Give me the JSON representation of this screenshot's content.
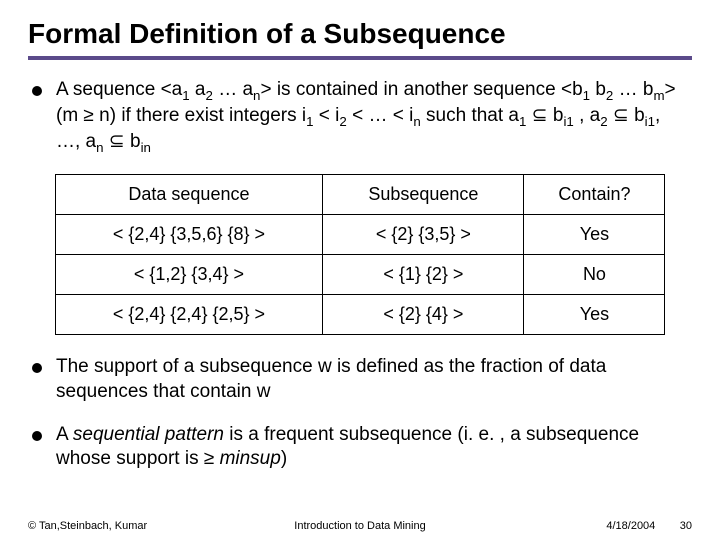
{
  "title": "Formal Definition of a Subsequence",
  "bullets": {
    "b1_pre": "A sequence <a",
    "b1_mid1": " a",
    "b1_mid2": " … a",
    "b1_post1": "> is contained in another sequence <b",
    "b1_mid3": " b",
    "b1_mid4": " … b",
    "b1_post2": "> (m ≥ n) if there exist integers i",
    "b1_mid5": " < i",
    "b1_mid6": " < … < i",
    "b1_post3": " such that a",
    "b1_mid7": " ⊆ b",
    "b1_mid8": " , a",
    "b1_mid9": " ⊆ b",
    "b1_mid10": ", …, a",
    "b1_mid11": " ⊆ b",
    "b2": "The support of a subsequence w is defined as the fraction of data sequences that contain w",
    "b3_pre": "A ",
    "b3_em": "sequential pattern",
    "b3_mid": " is a frequent subsequence (i. e. , a subsequence whose support is ≥ ",
    "b3_em2": "minsup",
    "b3_post": ")"
  },
  "table": {
    "headers": [
      "Data sequence",
      "Subsequence",
      "Contain?"
    ],
    "rows": [
      [
        "< {2,4} {3,5,6} {8} >",
        "< {2} {3,5} >",
        "Yes"
      ],
      [
        "< {1,2} {3,4} >",
        "< {1} {2} >",
        "No"
      ],
      [
        "< {2,4} {2,4} {2,5} >",
        "< {2} {4} >",
        "Yes"
      ]
    ]
  },
  "footer": {
    "left": "© Tan,Steinbach, Kumar",
    "center": "Introduction to Data Mining",
    "date": "4/18/2004",
    "page": "30"
  },
  "colors": {
    "rule": "#5b4a8a",
    "text": "#000000",
    "bg": "#ffffff"
  }
}
